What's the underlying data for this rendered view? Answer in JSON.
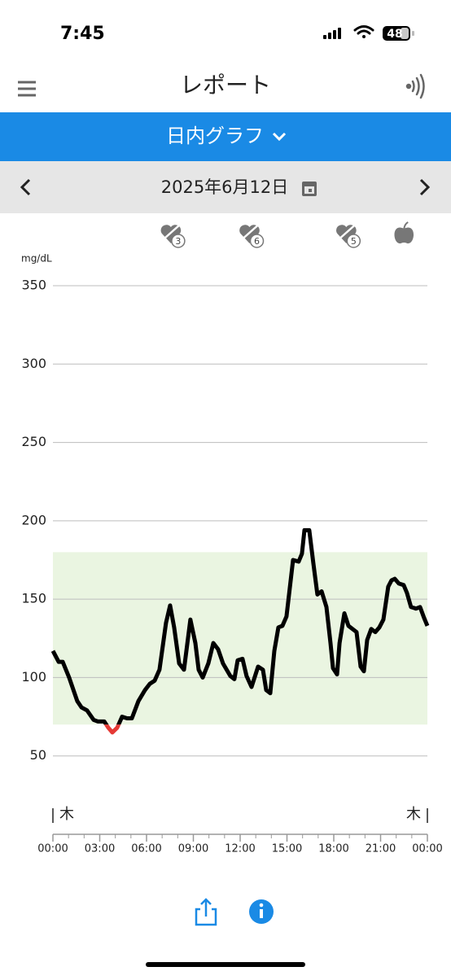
{
  "status_bar": {
    "time": "7:45",
    "battery": "48"
  },
  "header": {
    "title": "レポート"
  },
  "view_selector": {
    "label": "日内グラフ"
  },
  "date_bar": {
    "date": "2025年6月12日"
  },
  "chart_data": {
    "type": "line",
    "y_label": "mg/dL",
    "x": [
      0.0,
      0.37,
      0.63,
      1.04,
      1.56,
      1.83,
      2.19,
      2.61,
      2.87,
      3.29,
      3.55,
      3.81,
      4.12,
      4.43,
      4.75,
      5.06,
      5.48,
      5.9,
      6.21,
      6.52,
      6.83,
      7.25,
      7.51,
      7.77,
      8.09,
      8.4,
      8.81,
      9.13,
      9.34,
      9.6,
      9.96,
      10.28,
      10.59,
      10.9,
      11.37,
      11.63,
      11.84,
      12.15,
      12.41,
      12.73,
      13.15,
      13.46,
      13.67,
      13.93,
      14.19,
      14.45,
      14.71,
      14.97,
      15.39,
      15.75,
      15.96,
      16.12,
      16.43,
      16.69,
      16.95,
      17.22,
      17.53,
      17.79,
      17.95,
      18.21,
      18.37,
      18.68,
      18.94,
      19.46,
      19.72,
      19.93,
      20.14,
      20.4,
      20.66,
      20.92,
      21.18,
      21.49,
      21.7,
      21.91,
      22.17,
      22.48,
      22.69,
      22.95,
      23.27,
      23.53,
      23.79,
      24.0
    ],
    "series": [
      {
        "color": "#000000",
        "values": [
          117,
          110,
          110,
          100,
          85,
          81,
          79,
          73,
          72,
          72,
          68,
          65,
          68,
          75,
          74,
          74,
          85,
          92,
          96,
          98,
          105,
          135,
          146,
          132,
          109,
          105,
          137,
          122,
          105,
          100,
          109,
          122,
          118,
          109,
          101,
          99,
          111,
          112,
          101,
          94,
          107,
          105,
          92,
          90,
          117,
          132,
          133,
          139,
          175,
          174,
          179,
          194,
          194,
          173,
          153,
          155,
          145,
          122,
          106,
          102,
          122,
          141,
          133,
          129,
          107,
          104,
          124,
          131,
          129,
          132,
          137,
          158,
          162,
          163,
          160,
          159,
          154,
          145,
          144,
          145,
          138,
          133
        ]
      }
    ],
    "target_range": [
      70,
      180
    ],
    "target_color": "#eaf5e1",
    "low_color": "#e53935",
    "xlim": [
      0,
      24
    ],
    "xticks": [
      {
        "value": 0,
        "label": "00:00"
      },
      {
        "value": 3,
        "label": "03:00"
      },
      {
        "value": 6,
        "label": "06:00"
      },
      {
        "value": 9,
        "label": "09:00"
      },
      {
        "value": 12,
        "label": "12:00"
      },
      {
        "value": 15,
        "label": "15:00"
      },
      {
        "value": 18,
        "label": "18:00"
      },
      {
        "value": 21,
        "label": "21:00"
      },
      {
        "value": 24,
        "label": "00:00"
      }
    ],
    "ylim": [
      0,
      350
    ],
    "yticks": [
      50,
      100,
      150,
      200,
      250,
      300,
      350
    ],
    "grid": true,
    "day_markers": [
      {
        "x": 0,
        "label": "木"
      },
      {
        "x": 24,
        "label": "木"
      }
    ],
    "events": [
      {
        "x": 7.56,
        "label": "3"
      },
      {
        "x": 12.6,
        "label": "6"
      },
      {
        "x": 18.8,
        "label": "5"
      },
      {
        "x": 22.5
      }
    ]
  }
}
